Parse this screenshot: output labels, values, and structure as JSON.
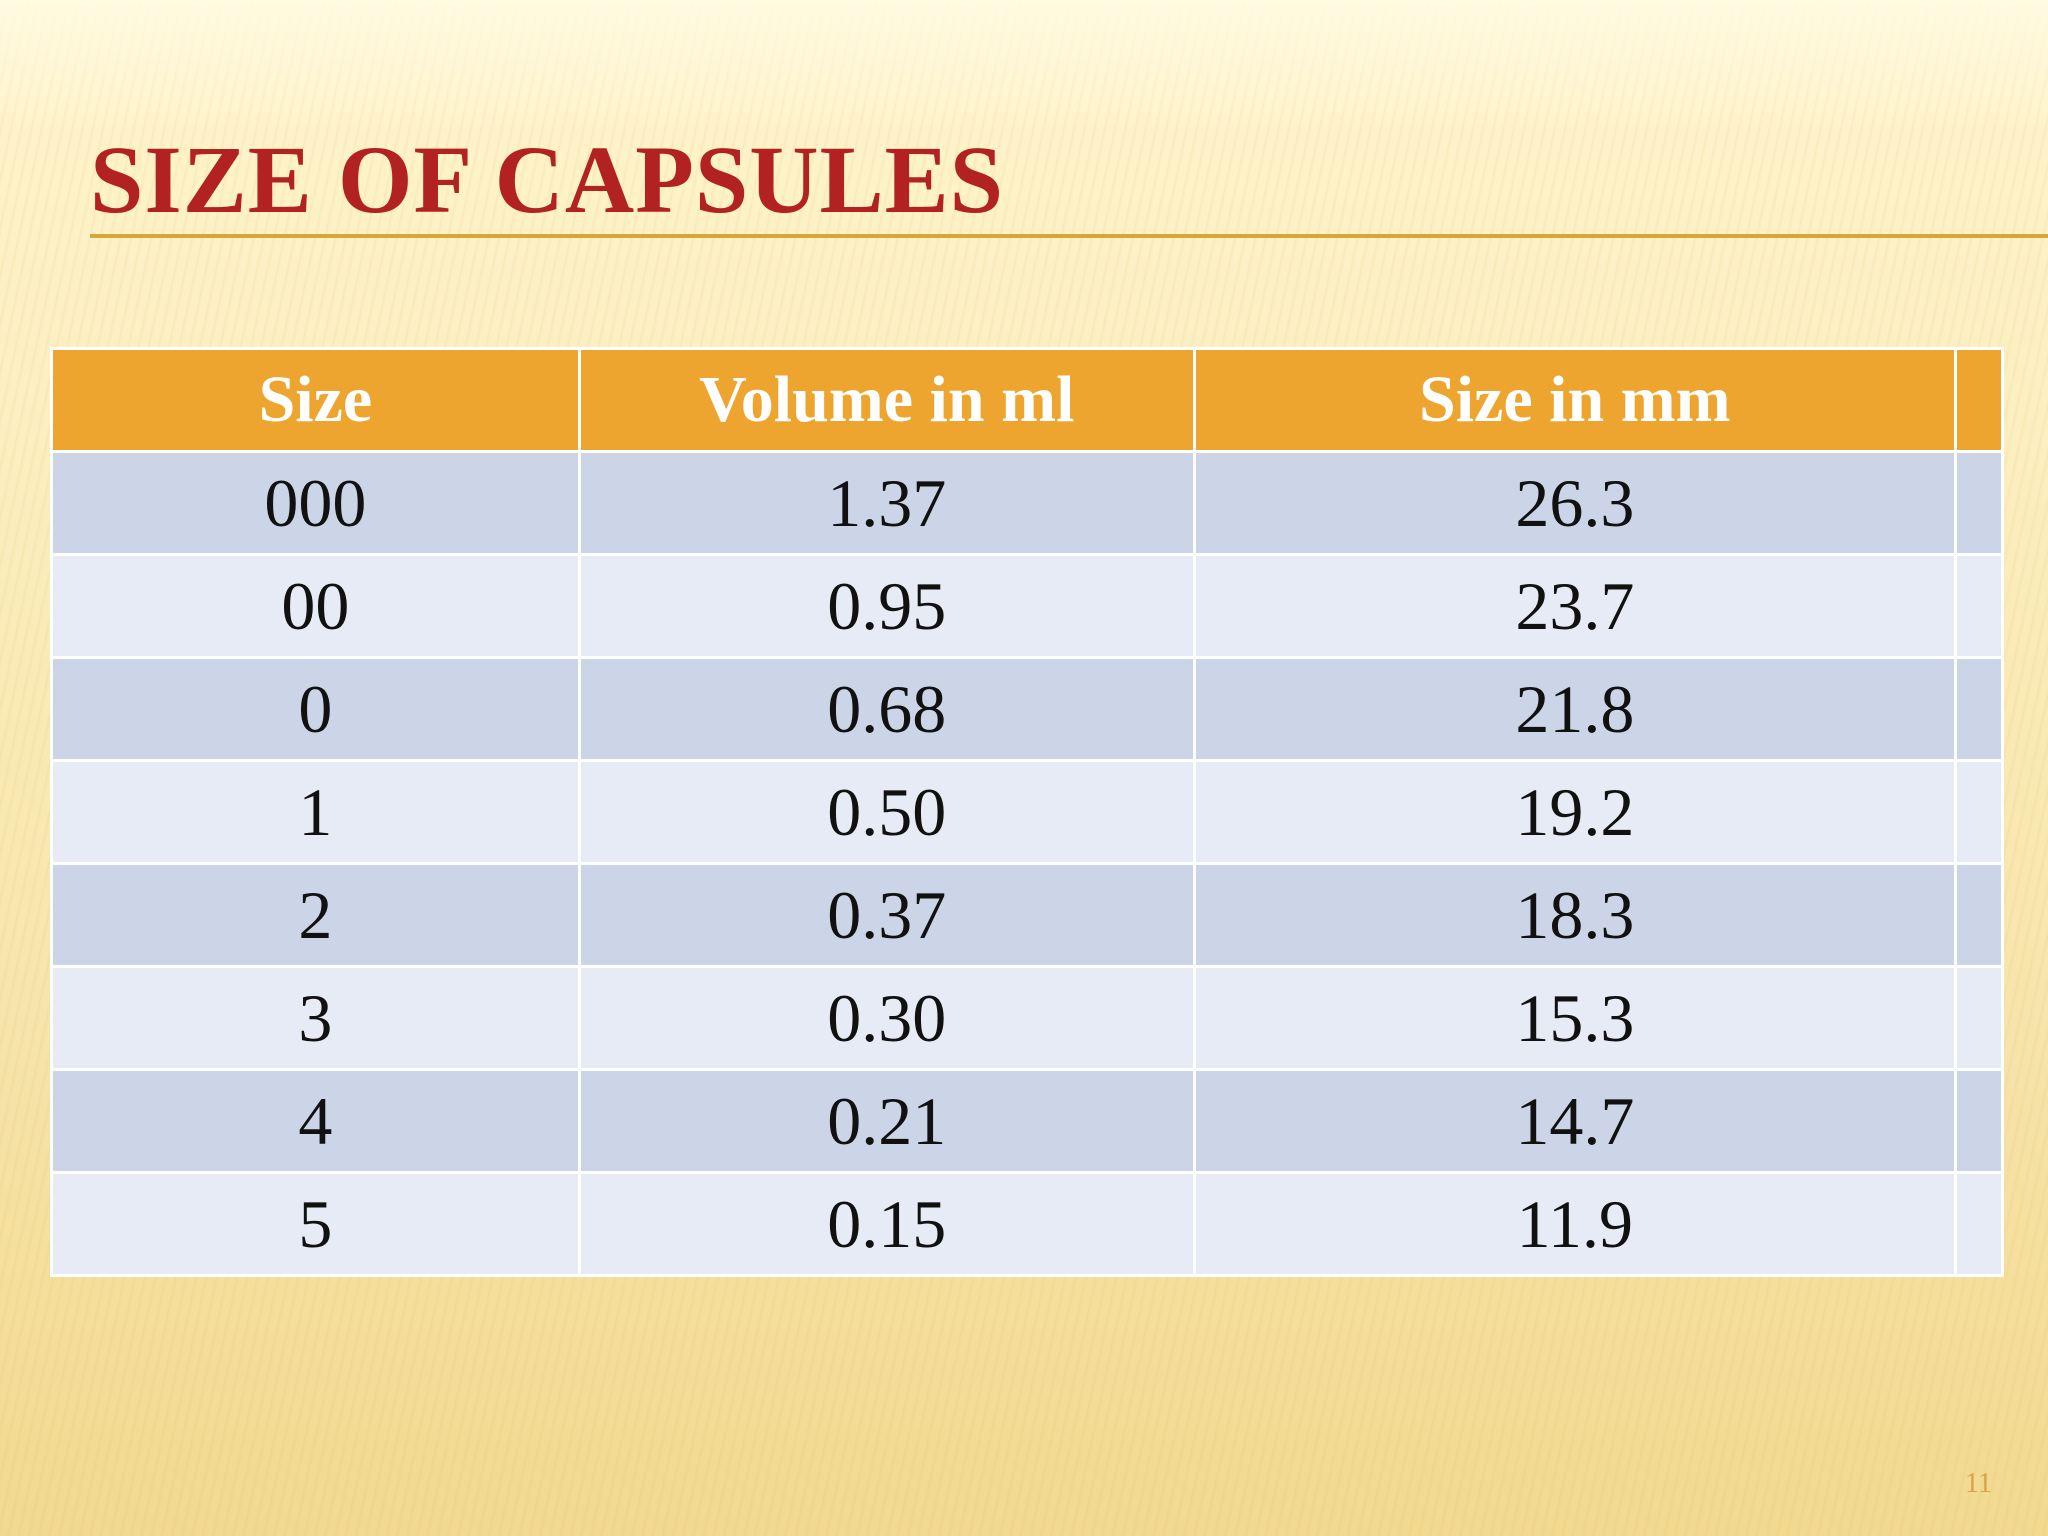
{
  "slide": {
    "title": "SIZE OF CAPSULES",
    "page_number": "11"
  },
  "table": {
    "headers": [
      "Size",
      "Volume in ml",
      "Size in mm",
      ""
    ],
    "rows": [
      [
        "000",
        "1.37",
        "26.3",
        ""
      ],
      [
        "00",
        "0.95",
        "23.7",
        ""
      ],
      [
        "0",
        "0.68",
        "21.8",
        ""
      ],
      [
        "1",
        "0.50",
        "19.2",
        ""
      ],
      [
        "2",
        "0.37",
        "18.3",
        ""
      ],
      [
        "3",
        "0.30",
        "15.3",
        ""
      ],
      [
        "4",
        "0.21",
        "14.7",
        ""
      ],
      [
        "5",
        "0.15",
        "11.9",
        ""
      ]
    ]
  },
  "colors": {
    "title": "#b22222",
    "header_background": "#eea52f",
    "row_dark": "#ccd5e8",
    "row_light": "#e7ebf5",
    "rule": "#d8a63a"
  }
}
